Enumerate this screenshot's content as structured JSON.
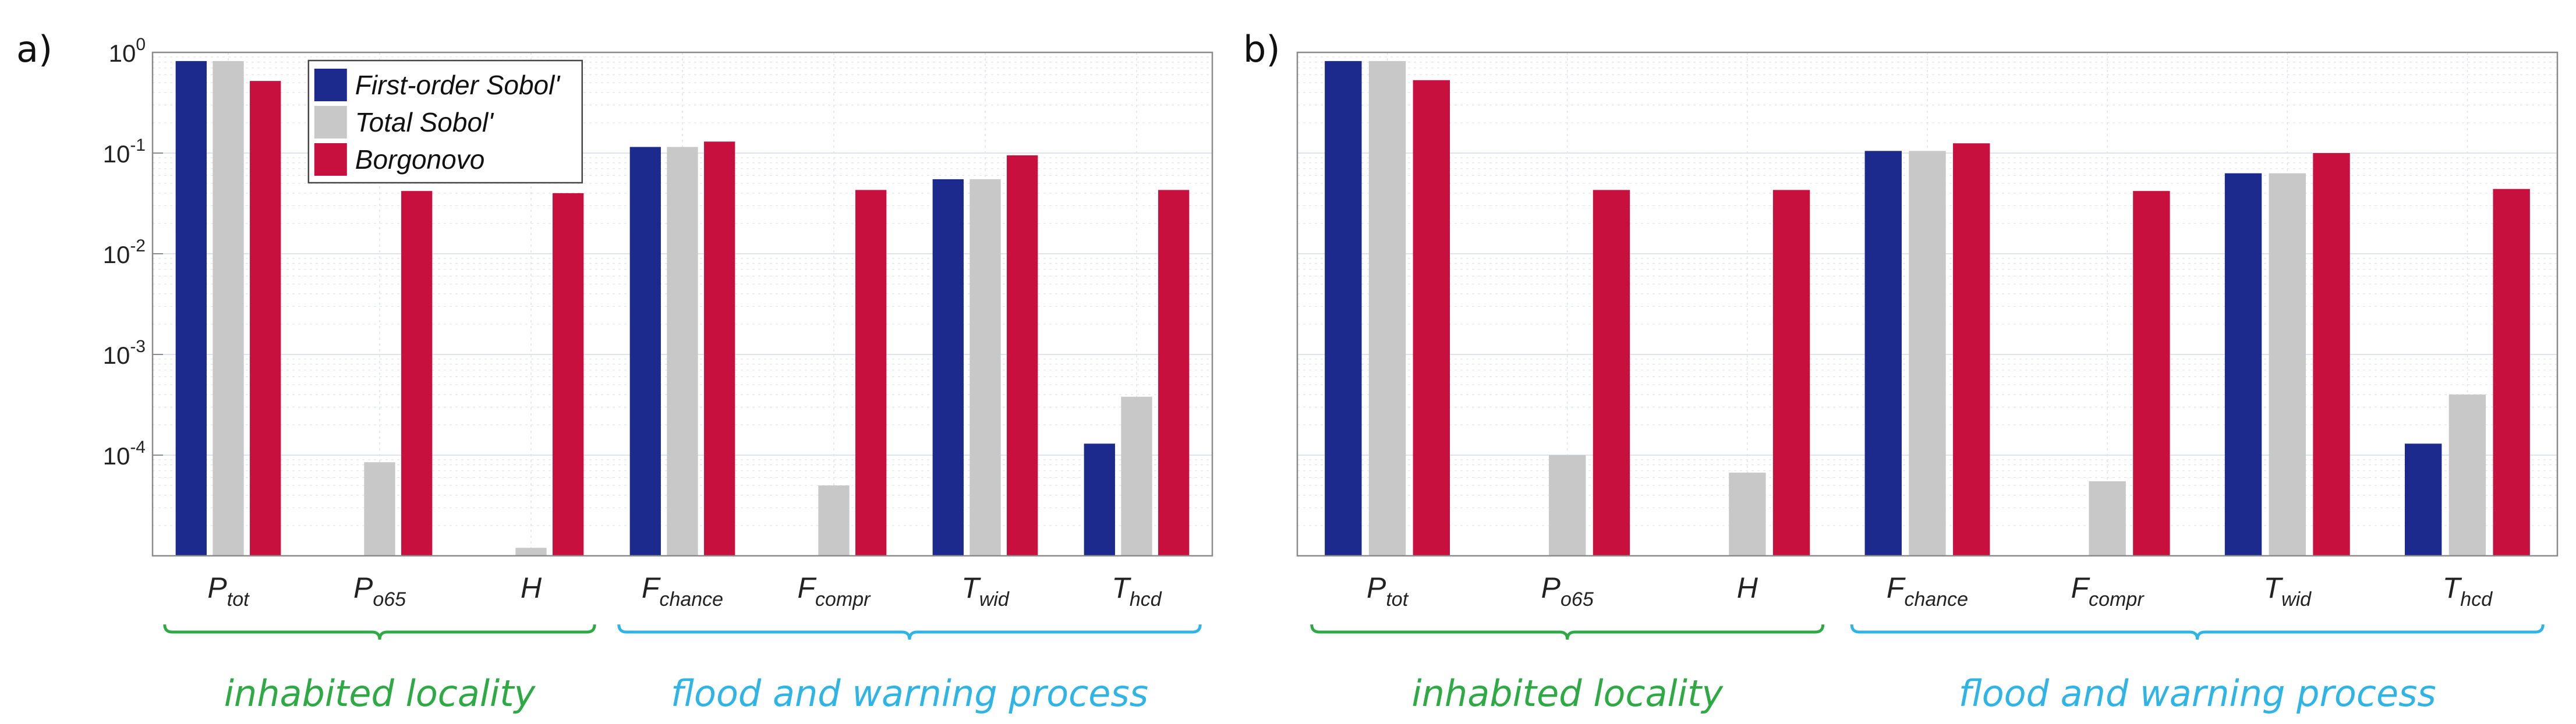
{
  "colors": {
    "first_order": "#1b2a8c",
    "total": "#c8c8c8",
    "borgonovo": "#c8103e",
    "group_inhabited": "#2eaa45",
    "group_flood": "#2fb4e6",
    "grid": "#dfe3ea",
    "axis": "#8a8a8a"
  },
  "legend": [
    "First-order Sobol'",
    "Total Sobol'",
    "Borgonovo"
  ],
  "groups": [
    {
      "label": "inhabited locality",
      "first": 0,
      "last": 2,
      "color_key": "group_inhabited"
    },
    {
      "label": "flood and warning process",
      "first": 3,
      "last": 6,
      "color_key": "group_flood"
    }
  ],
  "chart_data": [
    {
      "panel": "a)",
      "type": "bar",
      "yscale": "log",
      "ylim": [
        1e-05,
        1
      ],
      "yticks": [
        {
          "base": "10",
          "exp": "0"
        },
        {
          "base": "10",
          "exp": "-1"
        },
        {
          "base": "10",
          "exp": "-2"
        },
        {
          "base": "10",
          "exp": "-3"
        },
        {
          "base": "10",
          "exp": "-4"
        }
      ],
      "categories": [
        {
          "main": "P",
          "sub": "tot"
        },
        {
          "main": "P",
          "sub": "o65"
        },
        {
          "main": "H",
          "sub": ""
        },
        {
          "main": "F",
          "sub": "chance"
        },
        {
          "main": "F",
          "sub": "compr"
        },
        {
          "main": "T",
          "sub": "wid"
        },
        {
          "main": "T",
          "sub": "hcd"
        }
      ],
      "legend_position": "top-left",
      "series": [
        {
          "name": "First-order Sobol'",
          "color_key": "first_order",
          "values": [
            0.82,
            null,
            null,
            0.115,
            null,
            0.055,
            0.00013
          ]
        },
        {
          "name": "Total Sobol'",
          "color_key": "total",
          "values": [
            0.82,
            8.5e-05,
            1.2e-05,
            0.115,
            5e-05,
            0.055,
            0.00038
          ]
        },
        {
          "name": "Borgonovo",
          "color_key": "borgonovo",
          "values": [
            0.52,
            0.042,
            0.04,
            0.13,
            0.043,
            0.095,
            0.043
          ]
        }
      ]
    },
    {
      "panel": "b)",
      "type": "bar",
      "yscale": "log",
      "ylim": [
        1e-05,
        1
      ],
      "yticks": [],
      "categories": [
        {
          "main": "P",
          "sub": "tot"
        },
        {
          "main": "P",
          "sub": "o65"
        },
        {
          "main": "H",
          "sub": ""
        },
        {
          "main": "F",
          "sub": "chance"
        },
        {
          "main": "F",
          "sub": "compr"
        },
        {
          "main": "T",
          "sub": "wid"
        },
        {
          "main": "T",
          "sub": "hcd"
        }
      ],
      "legend_position": "none",
      "series": [
        {
          "name": "First-order Sobol'",
          "color_key": "first_order",
          "values": [
            0.82,
            null,
            null,
            0.105,
            null,
            0.063,
            0.00013
          ]
        },
        {
          "name": "Total Sobol'",
          "color_key": "total",
          "values": [
            0.82,
            0.0001,
            6.7e-05,
            0.105,
            5.5e-05,
            0.063,
            0.0004
          ]
        },
        {
          "name": "Borgonovo",
          "color_key": "borgonovo",
          "values": [
            0.53,
            0.043,
            0.043,
            0.125,
            0.042,
            0.1,
            0.044
          ]
        }
      ]
    }
  ]
}
